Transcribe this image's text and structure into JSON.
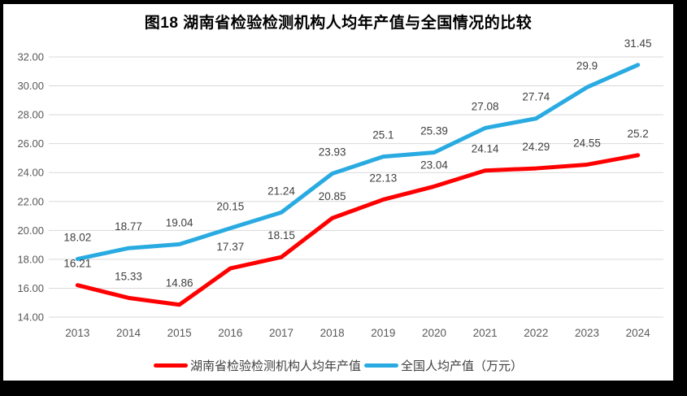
{
  "title": "图18 湖南省检验检测机构人均年产值与全国情况的比较",
  "chart_data": {
    "type": "line",
    "title": "图18 湖南省检验检测机构人均年产值与全国情况的比较",
    "categories": [
      "2013",
      "2014",
      "2015",
      "2016",
      "2017",
      "2018",
      "2019",
      "2020",
      "2021",
      "2022",
      "2023",
      "2024"
    ],
    "series": [
      {
        "name": "湖南省检验检测机构人均年产值",
        "color": "#FF0000",
        "values": [
          16.21,
          15.33,
          14.86,
          17.37,
          18.15,
          20.85,
          22.13,
          23.04,
          24.14,
          24.29,
          24.55,
          25.2
        ],
        "labels": [
          "16.21",
          "15.33",
          "14.86",
          "17.37",
          "18.15",
          "20.85",
          "22.13",
          "23.04",
          "24.14",
          "24.29",
          "24.55",
          "25.2"
        ]
      },
      {
        "name": "全国人均产值（万元）",
        "color": "#29ABE2",
        "values": [
          18.02,
          18.77,
          19.04,
          20.15,
          21.24,
          23.93,
          25.1,
          25.39,
          27.08,
          27.74,
          29.9,
          31.45
        ],
        "labels": [
          "18.02",
          "18.77",
          "19.04",
          "20.15",
          "21.24",
          "23.93",
          "25.1",
          "25.39",
          "27.08",
          "27.74",
          "29.9",
          "31.45"
        ]
      }
    ],
    "ylim": [
      14,
      32
    ],
    "ytick_step": 2,
    "ytick_labels": [
      "14.00",
      "16.00",
      "18.00",
      "20.00",
      "22.00",
      "24.00",
      "26.00",
      "28.00",
      "30.00",
      "32.00"
    ],
    "grid": true,
    "legend_position": "bottom",
    "gridline_color": "#D9D9D9",
    "tick_label_color": "#595959",
    "data_label_color": "#404040",
    "background_color": "#FFFFFF",
    "frame_color": "#000000"
  }
}
